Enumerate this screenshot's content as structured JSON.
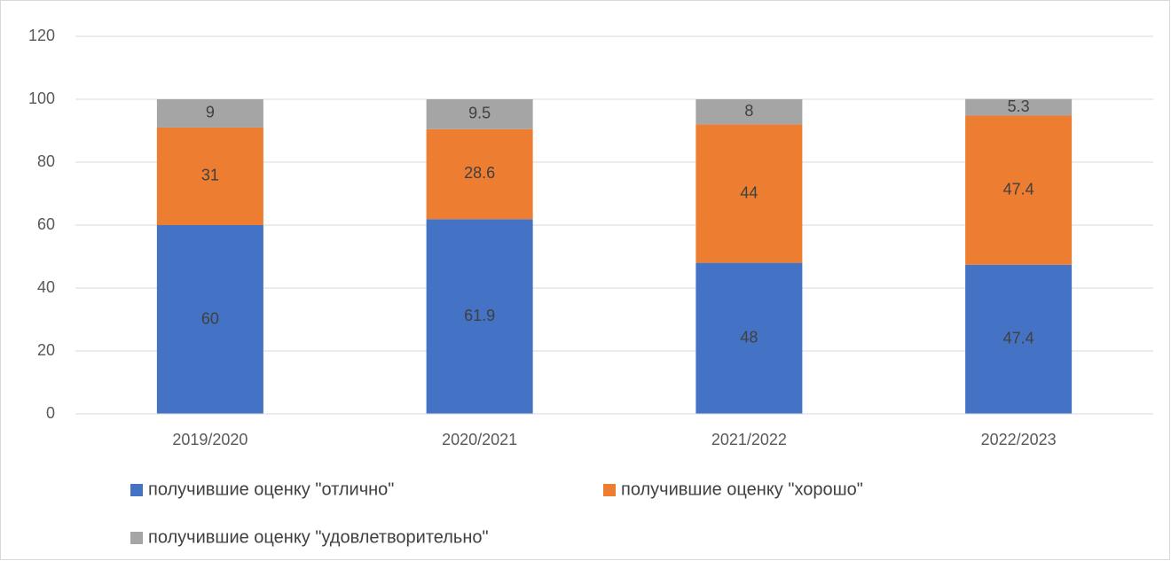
{
  "chart_data": {
    "type": "bar",
    "stacked": true,
    "categories": [
      "2019/2020",
      "2020/2021",
      "2021/2022",
      "2022/2023"
    ],
    "series": [
      {
        "name": "получившие оценку \"отлично\"",
        "color": "#4472c4",
        "values": [
          60,
          61.9,
          48,
          47.4
        ]
      },
      {
        "name": "получившие оценку \"хорошо\"",
        "color": "#ed7d31",
        "values": [
          31,
          28.6,
          44,
          47.4
        ]
      },
      {
        "name": "получившие оценку \"удовлетворительно\"",
        "color": "#a5a5a5",
        "values": [
          9,
          9.5,
          8,
          5.3
        ]
      }
    ],
    "ylim": [
      0,
      120
    ],
    "yticks": [
      0,
      20,
      40,
      60,
      80,
      100,
      120
    ],
    "grid": true,
    "legend": "bottom"
  }
}
